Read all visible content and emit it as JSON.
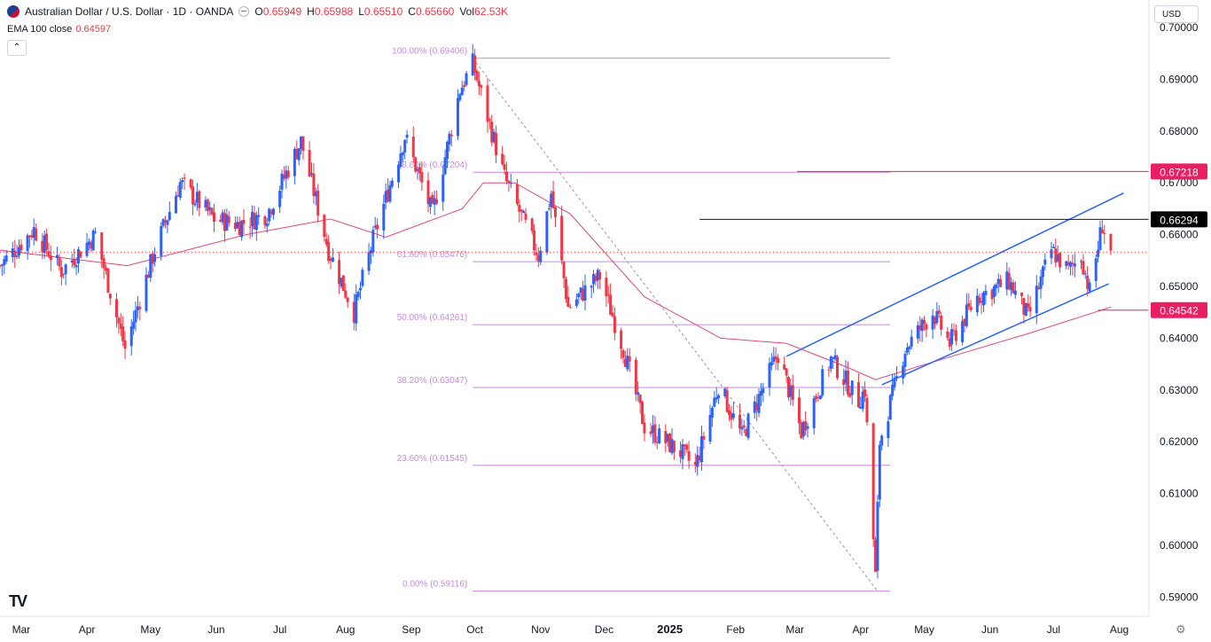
{
  "header": {
    "symbol_title": "Australian Dollar / U.S. Dollar · 1D · OANDA",
    "open_label": "O",
    "open_value": "0.65949",
    "high_label": "H",
    "high_value": "0.65988",
    "low_label": "L",
    "low_value": "0.65510",
    "close_label": "C",
    "close_value": "0.65660",
    "vol_label": "Vol",
    "vol_value": "62.53K",
    "ema_label": "EMA 100 close",
    "ema_value": "0.64597",
    "collapse_icon": "chevron-up-icon"
  },
  "toolbar": {
    "currency_label": "USD"
  },
  "footer": {
    "logo_text": "TV",
    "settings_icon": "gear-icon"
  },
  "colors": {
    "bull": "#2962ff",
    "bear": "#f23645",
    "ema": "#e0457b",
    "fib": "#c78ae0",
    "channel": "#2962ff",
    "hline": "#131722",
    "marker_magenta": "#e91e63",
    "marker_black": "#000000"
  },
  "chart_data": {
    "type": "candlestick",
    "title": "Australian Dollar / U.S. Dollar · 1D · OANDA",
    "ylim": [
      0.5863,
      0.7053
    ],
    "y_ticks": [
      "0.70000",
      "0.69000",
      "0.68000",
      "0.67000",
      "0.66000",
      "0.65000",
      "0.64000",
      "0.63000",
      "0.62000",
      "0.61000",
      "0.60000",
      "0.59000"
    ],
    "x_ticks": [
      "Mar",
      "Apr",
      "May",
      "Jun",
      "Jul",
      "Aug",
      "Sep",
      "Oct",
      "Nov",
      "Dec",
      "2025",
      "Feb",
      "Mar",
      "Apr",
      "May",
      "Jun",
      "Jul",
      "Aug"
    ],
    "x_tick_dates": [
      "2024-03-01",
      "2024-04-01",
      "2024-05-01",
      "2024-06-01",
      "2024-07-01",
      "2024-08-01",
      "2024-09-01",
      "2024-10-01",
      "2024-11-01",
      "2024-12-01",
      "2025-01-01",
      "2025-02-01",
      "2025-03-01",
      "2025-04-01",
      "2025-05-01",
      "2025-06-01",
      "2025-07-01",
      "2025-08-01"
    ],
    "x_range": [
      "2024-02-20",
      "2025-08-15"
    ],
    "price_path": [
      [
        "2024-02-20",
        0.654
      ],
      [
        "2024-03-07",
        0.661
      ],
      [
        "2024-03-20",
        0.653
      ],
      [
        "2024-04-05",
        0.66
      ],
      [
        "2024-04-19",
        0.638
      ],
      [
        "2024-05-03",
        0.657
      ],
      [
        "2024-05-15",
        0.67
      ],
      [
        "2024-05-31",
        0.663
      ],
      [
        "2024-06-12",
        0.662
      ],
      [
        "2024-06-25",
        0.664
      ],
      [
        "2024-07-11",
        0.678
      ],
      [
        "2024-07-24",
        0.657
      ],
      [
        "2024-08-05",
        0.645
      ],
      [
        "2024-08-14",
        0.659
      ],
      [
        "2024-08-29",
        0.679
      ],
      [
        "2024-09-11",
        0.664
      ],
      [
        "2024-09-24",
        0.688
      ],
      [
        "2024-09-30",
        0.693
      ],
      [
        "2024-10-15",
        0.671
      ],
      [
        "2024-10-31",
        0.656
      ],
      [
        "2024-11-06",
        0.668
      ],
      [
        "2024-11-14",
        0.646
      ],
      [
        "2024-11-29",
        0.652
      ],
      [
        "2024-12-10",
        0.638
      ],
      [
        "2024-12-20",
        0.623
      ],
      [
        "2025-01-06",
        0.618
      ],
      [
        "2025-01-13",
        0.615
      ],
      [
        "2025-01-24",
        0.631
      ],
      [
        "2025-02-04",
        0.621
      ],
      [
        "2025-02-21",
        0.637
      ],
      [
        "2025-03-04",
        0.622
      ],
      [
        "2025-03-18",
        0.636
      ],
      [
        "2025-03-31",
        0.628
      ],
      [
        "2025-04-03",
        0.63
      ],
      [
        "2025-04-08",
        0.594
      ],
      [
        "2025-04-10",
        0.62
      ],
      [
        "2025-04-22",
        0.638
      ],
      [
        "2025-05-05",
        0.645
      ],
      [
        "2025-05-13",
        0.639
      ],
      [
        "2025-05-26",
        0.648
      ],
      [
        "2025-06-10",
        0.651
      ],
      [
        "2025-06-19",
        0.644
      ],
      [
        "2025-06-30",
        0.657
      ],
      [
        "2025-07-08",
        0.653
      ],
      [
        "2025-07-14",
        0.656
      ],
      [
        "2025-07-18",
        0.649
      ],
      [
        "2025-07-24",
        0.662
      ],
      [
        "2025-07-28",
        0.6566
      ]
    ],
    "ema_path": [
      [
        "2024-02-20",
        0.657
      ],
      [
        "2024-04-20",
        0.654
      ],
      [
        "2024-06-15",
        0.66
      ],
      [
        "2024-07-25",
        0.663
      ],
      [
        "2024-08-20",
        0.6595
      ],
      [
        "2024-09-25",
        0.665
      ],
      [
        "2024-10-05",
        0.67
      ],
      [
        "2024-10-20",
        0.67
      ],
      [
        "2024-11-15",
        0.664
      ],
      [
        "2024-12-20",
        0.648
      ],
      [
        "2025-01-25",
        0.64
      ],
      [
        "2025-02-25",
        0.639
      ],
      [
        "2025-03-25",
        0.6345
      ],
      [
        "2025-04-08",
        0.632
      ],
      [
        "2025-05-10",
        0.636
      ],
      [
        "2025-06-20",
        0.641
      ],
      [
        "2025-07-28",
        0.646
      ]
    ],
    "fibonacci": [
      {
        "label": "100.00% (0.69406)",
        "value": 0.69406
      },
      {
        "label": "78.60% (0.67204)",
        "value": 0.67204
      },
      {
        "label": "61.80% (0.65476)",
        "value": 0.65476
      },
      {
        "label": "50.00% (0.64261)",
        "value": 0.64261
      },
      {
        "label": "38.20% (0.63047)",
        "value": 0.63047
      },
      {
        "label": "23.60% (0.61545)",
        "value": 0.61545
      },
      {
        "label": "0.00% (0.59116)",
        "value": 0.59116
      }
    ],
    "fib_range": [
      "2024-09-30",
      "2025-04-15"
    ],
    "fib_diagonal": [
      [
        "2024-09-30",
        0.69406
      ],
      [
        "2025-04-09",
        0.59116
      ]
    ],
    "channel": {
      "upper": [
        [
          "2025-02-25",
          0.6365
        ],
        [
          "2025-08-03",
          0.668
        ]
      ],
      "lower": [
        [
          "2025-04-11",
          0.631
        ],
        [
          "2025-07-27",
          0.6505
        ]
      ]
    },
    "horizontal_levels": [
      {
        "value": 0.66294,
        "label": "0.66294",
        "from": "2025-01-15",
        "style": "black"
      },
      {
        "value": 0.67218,
        "label": "0.67218",
        "from": "2025-03-02",
        "style": "magenta"
      },
      {
        "value": 0.64542,
        "label": "0.64542",
        "from": "2025-07-22",
        "style": "magenta"
      }
    ],
    "last_price": 0.6566,
    "legend": "top-left"
  }
}
